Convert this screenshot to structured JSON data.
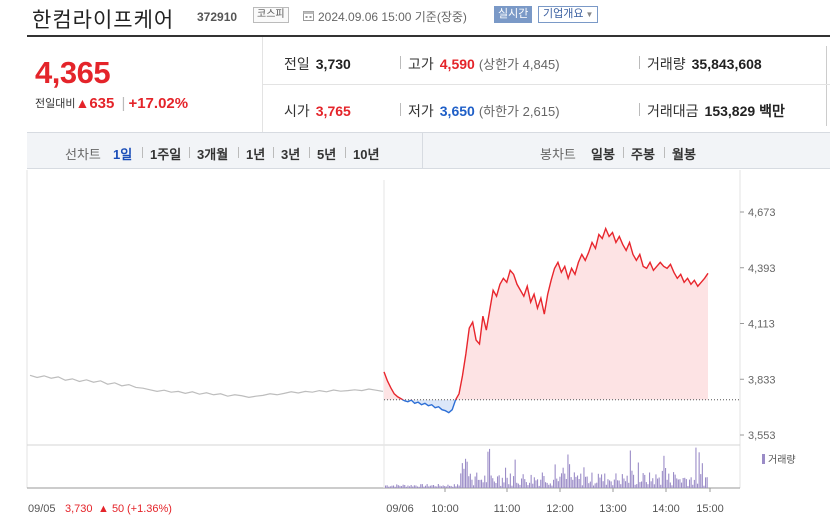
{
  "header": {
    "stock_name": "한컴라이프케어",
    "stock_code": "372910",
    "market_badge": "코스피",
    "datetime_text": "2024.09.06 15:00 기준(장중)",
    "realtime_label": "실시간",
    "company_info_label": "기업개요"
  },
  "price": {
    "current": "4,365",
    "change_label": "전일대비",
    "change_value": "635",
    "change_pct": "+17.02%"
  },
  "stats": {
    "prev_close_label": "전일",
    "prev_close": "3,730",
    "high_label": "고가",
    "high": "4,590",
    "upper_limit_label": "(상한가",
    "upper_limit": "4,845)",
    "volume_label": "거래량",
    "volume": "35,843,608",
    "open_label": "시가",
    "open": "3,765",
    "low_label": "저가",
    "low": "3,650",
    "lower_limit_label": "(하한가",
    "lower_limit": "2,615)",
    "amount_label": "거래대금",
    "amount": "153,829",
    "amount_unit": "백만"
  },
  "toolbar": {
    "line_chart_label": "선차트",
    "periods": [
      "1일",
      "1주일",
      "3개월",
      "1년",
      "3년",
      "5년",
      "10년"
    ],
    "active_period": "1일",
    "candle_chart_label": "봉차트",
    "candle_periods": [
      "일봉",
      "주봉",
      "월봉"
    ]
  },
  "chart_data": {
    "type": "line",
    "y_ticks": [
      "4,673",
      "4,393",
      "4,113",
      "3,833",
      "3,553"
    ],
    "ylim": [
      3553,
      4673
    ],
    "prev_close": 3730,
    "x_ticks": [
      "09/05",
      "09/06",
      "10:00",
      "11:00",
      "12:00",
      "13:00",
      "14:00",
      "15:00"
    ],
    "prev_day_label": "09/05",
    "prev_day_close": "3,730",
    "prev_day_change": "50",
    "prev_day_change_pct": "(+1.36%)",
    "volume_legend": "거래량",
    "colors": {
      "up": "#e8262d",
      "down": "#2d6fd6",
      "prev": "#bdbdbd",
      "fill_up": "#fde3e4",
      "fill_down": "#dbe7f9",
      "volume": "#9b8cc7"
    },
    "prev_series": [
      3853,
      3842,
      3850,
      3838,
      3845,
      3828,
      3835,
      3822,
      3830,
      3818,
      3825,
      3808,
      3815,
      3800,
      3806,
      3792,
      3788,
      3780,
      3772,
      3778,
      3768,
      3772,
      3762,
      3770,
      3758,
      3765,
      3755,
      3760,
      3748,
      3755,
      3750,
      3742,
      3748,
      3752,
      3760,
      3755,
      3762,
      3770,
      3764,
      3772,
      3768,
      3776,
      3770,
      3779,
      3773,
      3776,
      3780,
      3776,
      3784,
      3778,
      3772
    ],
    "today_series": [
      3870,
      3825,
      3790,
      3760,
      3745,
      3735,
      3725,
      3720,
      3728,
      3712,
      3718,
      3705,
      3712,
      3700,
      3705,
      3690,
      3695,
      3680,
      3675,
      3665,
      3680,
      3730,
      3760,
      3850,
      3960,
      4090,
      4120,
      4030,
      4010,
      4150,
      4080,
      4180,
      4280,
      4250,
      4310,
      4340,
      4320,
      4380,
      4360,
      4310,
      4280,
      4250,
      4300,
      4220,
      4260,
      4190,
      4240,
      4160,
      4260,
      4330,
      4390,
      4420,
      4370,
      4400,
      4340,
      4390,
      4360,
      4420,
      4460,
      4430,
      4470,
      4520,
      4490,
      4560,
      4540,
      4590,
      4550,
      4570,
      4520,
      4550,
      4510,
      4480,
      4520,
      4460,
      4430,
      4460,
      4400,
      4390,
      4420,
      4380,
      4400,
      4420,
      4400,
      4390,
      4410,
      4370,
      4340,
      4360,
      4320,
      4340,
      4310,
      4330,
      4300,
      4320,
      4340,
      4365
    ]
  }
}
